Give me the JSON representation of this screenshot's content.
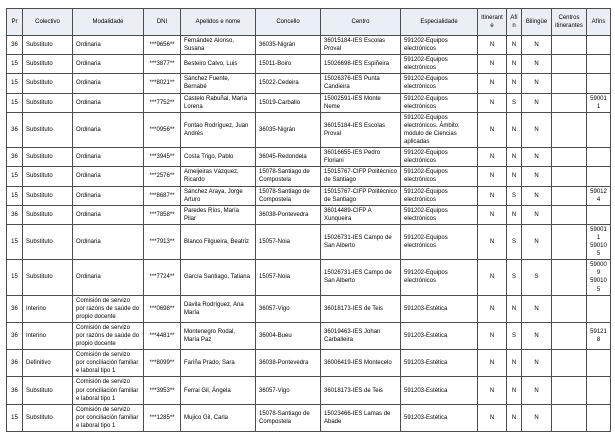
{
  "colors": {
    "header_background": "#eaeff6",
    "border": "#4d4d4d",
    "text": "#000000",
    "page_background": "#ffffff"
  },
  "table": {
    "columns": [
      {
        "key": "pr",
        "label": "Pr"
      },
      {
        "key": "colectivo",
        "label": "Colectivo"
      },
      {
        "key": "modalidade",
        "label": "Modalidade"
      },
      {
        "key": "dni",
        "label": "DNI"
      },
      {
        "key": "apelidos_e_nome",
        "label": "Apelidos e nome"
      },
      {
        "key": "concello",
        "label": "Concello"
      },
      {
        "key": "centro",
        "label": "Centro"
      },
      {
        "key": "especialidade",
        "label": "Especialidade"
      },
      {
        "key": "itinerante",
        "label": "Itinerante"
      },
      {
        "key": "afin",
        "label": "Afín"
      },
      {
        "key": "bilingue",
        "label": "Bilingüe"
      },
      {
        "key": "centros_itinerantes",
        "label": "Centros itinerantes"
      },
      {
        "key": "afins",
        "label": "Afíns"
      }
    ],
    "rows": [
      [
        "36",
        "Substituto",
        "Ordinaria",
        "***9656**",
        "Fernández Alonso, Susana",
        "36035-Nigrán",
        "36015184-IES Escolas Proval",
        "591202-Equipos electrónicos",
        "N",
        "N",
        "N",
        "",
        ""
      ],
      [
        "15",
        "Substituto",
        "Ordinaria",
        "***3877**",
        "Besteiro Calvo, Luis",
        "15011-Boiro",
        "15026698-IES Espiñeira",
        "591202-Equipos electrónicos",
        "N",
        "N",
        "N",
        "",
        ""
      ],
      [
        "15",
        "Substituto",
        "Ordinaria",
        "***8021**",
        "Sánchez Fuente, Bernabé",
        "15022-Cedeira",
        "15026376-IES Punta Candieira",
        "591202-Equipos electrónicos",
        "N",
        "N",
        "N",
        "",
        ""
      ],
      [
        "15",
        "Substituto",
        "Ordinaria",
        "***7752**",
        "Castelo Rabuñal, María Lorena",
        "15019-Carballo",
        "15002591-IES Monte Neme",
        "591202-Equipos electrónicos",
        "N",
        "S",
        "N",
        "",
        "590011"
      ],
      [
        "36",
        "Substituto",
        "Ordinaria",
        "***0956**",
        "Fontao Rodríguez, Juan Andrés",
        "36035-Nigrán",
        "36015184-IES Escolas Proval",
        "591202-Equipos electrónicos. Ámbito: módulo de Ciencias aplicadas",
        "N",
        "N",
        "N",
        "",
        ""
      ],
      [
        "36",
        "Substituto",
        "Ordinaria",
        "***3945**",
        "Costa Trigo, Pablo",
        "36045-Redondela",
        "36016655-IES Pedro Floriani",
        "591202-Equipos electrónicos",
        "N",
        "N",
        "N",
        "",
        ""
      ],
      [
        "15",
        "Substituto",
        "Ordinaria",
        "***2576**",
        "Ameijeiras Vázquez, Ricardo",
        "15078-Santiago de Compostela",
        "15015767-CIFP Politécnico de Santiago",
        "591202-Equipos electrónicos",
        "N",
        "N",
        "N",
        "",
        ""
      ],
      [
        "15",
        "Substituto",
        "Ordinaria",
        "***8687**",
        "Sánchez Araya, Jorge Arturo",
        "15078-Santiago de Compostela",
        "15015767-CIFP Politécnico de Santiago",
        "591202-Equipos electrónicos",
        "N",
        "S",
        "N",
        "",
        "590124"
      ],
      [
        "36",
        "Substituto",
        "Ordinaria",
        "***7858**",
        "Paredes Ríos, María Pilar",
        "36038-Pontevedra",
        "36014489-CIFP A Xunqueira",
        "591202-Equipos electrónicos",
        "N",
        "N",
        "N",
        "",
        ""
      ],
      [
        "15",
        "Substituto",
        "Ordinaria",
        "***7913**",
        "Blanco Filgueira, Beatriz",
        "15057-Noia",
        "15026731-IES Campo de San Alberto",
        "591202-Equipos electrónicos",
        "N",
        "S",
        "N",
        "",
        "590011\n590105"
      ],
      [
        "15",
        "Substituto",
        "Ordinaria",
        "***7724**",
        "García Santiago, Tatiana",
        "15057-Noia",
        "15026731-IES Campo de San Alberto",
        "591202-Equipos electrónicos",
        "N",
        "S",
        "S",
        "",
        "590009\n590105"
      ],
      [
        "36",
        "Interino",
        "Comisión de servizo por razóns de saúde do propio docente",
        "***0698**",
        "Davila Rodríguez, Ana María",
        "36057-Vigo",
        "36018173-IES de Teis",
        "591203-Estética",
        "N",
        "N",
        "N",
        "",
        ""
      ],
      [
        "36",
        "Interino",
        "Comisión de servizo por razóns de saúde do propio docente",
        "***4481**",
        "Montenegro Rodal, María Paz",
        "36004-Bueu",
        "36019463-IES Johan Carballeira",
        "591203-Estética",
        "N",
        "S",
        "N",
        "",
        "591218"
      ],
      [
        "36",
        "Definitivo",
        "Comisión de servizo por conciliación familiar e laboral tipo 1",
        "***8099**",
        "Fariña Prado, Sara",
        "36038-Pontevedra",
        "36006419-IES Montecelo",
        "591203-Estética",
        "N",
        "N",
        "N",
        "",
        ""
      ],
      [
        "36",
        "Substituto",
        "Comisión de servizo por conciliación familiar e laboral tipo 1",
        "***3953**",
        "Ferrai Gil, Ángela",
        "36057-Vigo",
        "36018173-IES de Teis",
        "591203-Estética",
        "N",
        "N",
        "N",
        "",
        ""
      ],
      [
        "15",
        "Substituto",
        "Comisión de servizo por conciliación familiar e laboral tipo 1",
        "***1285**",
        "Mujico Gil, Carla",
        "15078-Santiago de Compostela",
        "15023466-IES Lamas de Abade",
        "591203-Estética",
        "N",
        "N",
        "N",
        "",
        ""
      ]
    ]
  }
}
